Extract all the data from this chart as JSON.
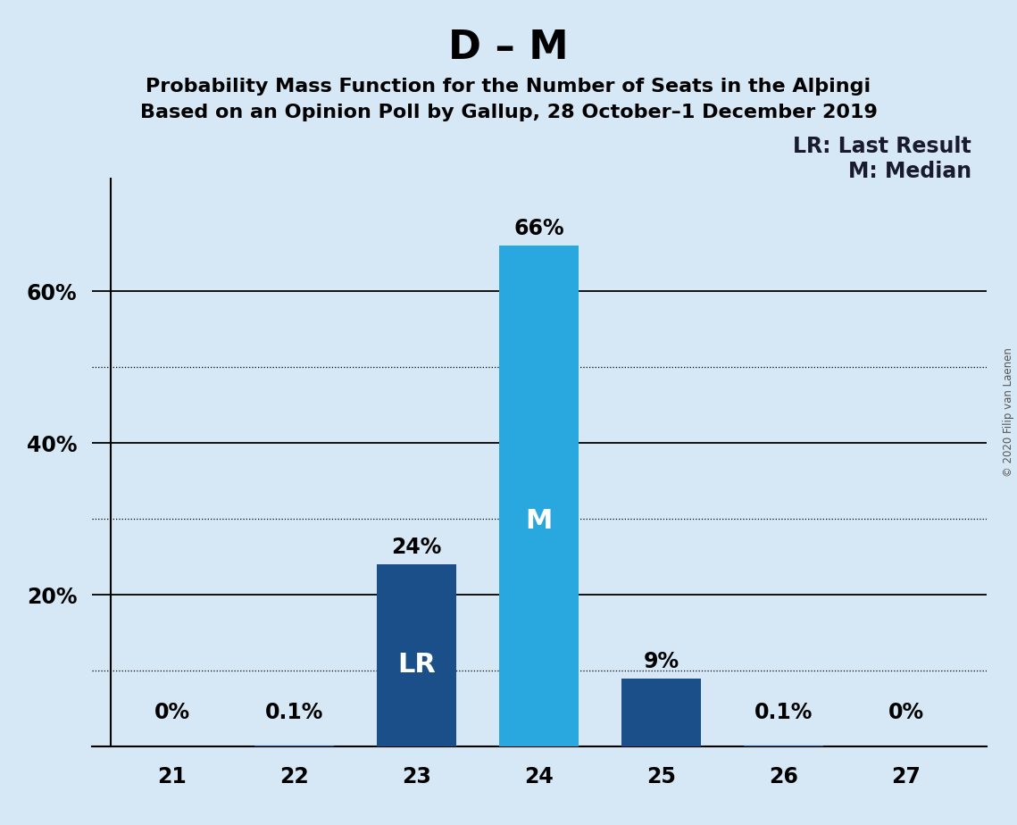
{
  "title": "D – M",
  "subtitle1": "Probability Mass Function for the Number of Seats in the Alþingi",
  "subtitle2": "Based on an Opinion Poll by Gallup, 28 October–1 December 2019",
  "categories": [
    21,
    22,
    23,
    24,
    25,
    26,
    27
  ],
  "values": [
    0.0,
    0.1,
    24.0,
    66.0,
    9.0,
    0.1,
    0.0
  ],
  "bar_labels": [
    "0%",
    "0.1%",
    "24%",
    "66%",
    "9%",
    "0.1%",
    "0%"
  ],
  "bar_colors": [
    "#1a4f8a",
    "#1a4f8a",
    "#1a4f8a",
    "#29a8e0",
    "#1a4f8a",
    "#1a4f8a",
    "#1a4f8a"
  ],
  "lr_bar": 23,
  "median_bar": 24,
  "lr_label": "LR",
  "median_label": "M",
  "legend_lr": "LR: Last Result",
  "legend_m": "M: Median",
  "copyright": "© 2020 Filip van Laenen",
  "background_color": "#d6e8f5",
  "major_yticks": [
    20,
    40,
    60
  ],
  "dotted_yticks": [
    10,
    30,
    50
  ],
  "ylim": [
    0,
    75
  ],
  "title_fontsize": 32,
  "subtitle_fontsize": 16,
  "bar_label_fontsize": 17,
  "axis_tick_fontsize": 17,
  "inner_label_fontsize": 22,
  "legend_fontsize": 17,
  "legend_color": "#1a1a2e"
}
